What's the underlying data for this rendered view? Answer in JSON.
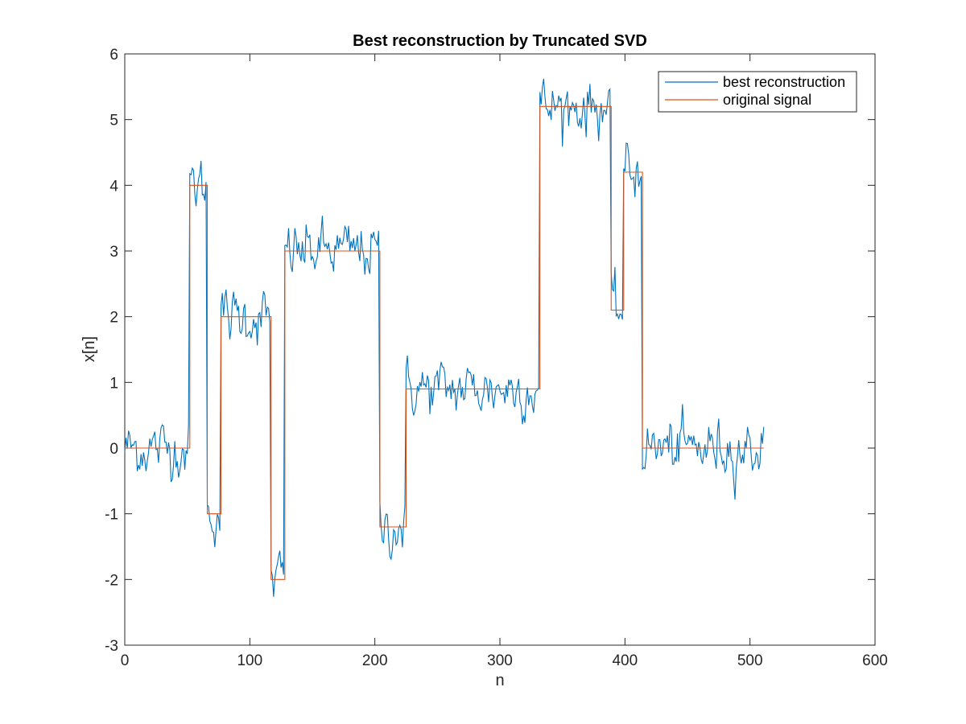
{
  "chart_data": {
    "type": "line",
    "title": "Best reconstruction by Truncated SVD",
    "xlabel": "n",
    "ylabel": "x[n]",
    "xlim": [
      0,
      600
    ],
    "ylim": [
      -3,
      6
    ],
    "xticks": [
      0,
      100,
      200,
      300,
      400,
      500,
      600
    ],
    "yticks": [
      -3,
      -2,
      -1,
      0,
      1,
      2,
      3,
      4,
      5,
      6
    ],
    "grid": false,
    "legend_position": "top-right",
    "n_points": 512,
    "series": [
      {
        "name": "best reconstruction",
        "color": "#0072BD",
        "noise_std": 0.28,
        "description": "noisy reconstruction following the original signal"
      },
      {
        "name": "original signal",
        "color": "#D95319",
        "segments": [
          {
            "start": 0,
            "end": 52,
            "value": 0
          },
          {
            "start": 52,
            "end": 66,
            "value": 4
          },
          {
            "start": 66,
            "end": 77,
            "value": -1
          },
          {
            "start": 77,
            "end": 117,
            "value": 2
          },
          {
            "start": 117,
            "end": 128,
            "value": -2
          },
          {
            "start": 128,
            "end": 204,
            "value": 3
          },
          {
            "start": 204,
            "end": 225,
            "value": -1.2
          },
          {
            "start": 225,
            "end": 332,
            "value": 0.9
          },
          {
            "start": 332,
            "end": 389,
            "value": 5.2
          },
          {
            "start": 389,
            "end": 399,
            "value": 2.1
          },
          {
            "start": 399,
            "end": 414,
            "value": 4.2
          },
          {
            "start": 414,
            "end": 511,
            "value": 0
          }
        ]
      }
    ]
  }
}
